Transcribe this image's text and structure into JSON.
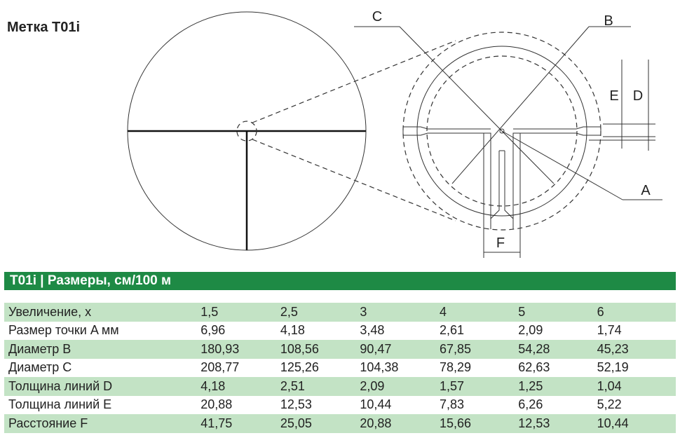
{
  "header": {
    "title": "Метка T01i"
  },
  "diagram": {
    "labels": {
      "c": "C",
      "b": "B",
      "e": "E",
      "d": "D",
      "a": "A",
      "f": "F"
    }
  },
  "table": {
    "title": "T01i | Размеры, см/100 м",
    "rows": [
      [
        "Увеличение, x",
        "1,5",
        "2,5",
        "3",
        "4",
        "5",
        "6"
      ],
      [
        "Размер точки A мм",
        "6,96",
        "4,18",
        "3,48",
        "2,61",
        "2,09",
        "1,74"
      ],
      [
        "Диаметр  B",
        "180,93",
        "108,56",
        "90,47",
        "67,85",
        "54,28",
        "45,23"
      ],
      [
        "Диаметр C",
        "208,77",
        "125,26",
        "104,38",
        "78,29",
        "62,63",
        "52,19"
      ],
      [
        "Толщина линий  D",
        "4,18",
        "2,51",
        "2,09",
        "1,57",
        "1,25",
        "1,04"
      ],
      [
        "Толщина линий E",
        "20,88",
        "12,53",
        "10,44",
        "7,83",
        "6,26",
        "5,22"
      ],
      [
        "Расстояние F",
        "41,75",
        "25,05",
        "20,88",
        "15,66",
        "12,53",
        "10,44"
      ]
    ]
  }
}
